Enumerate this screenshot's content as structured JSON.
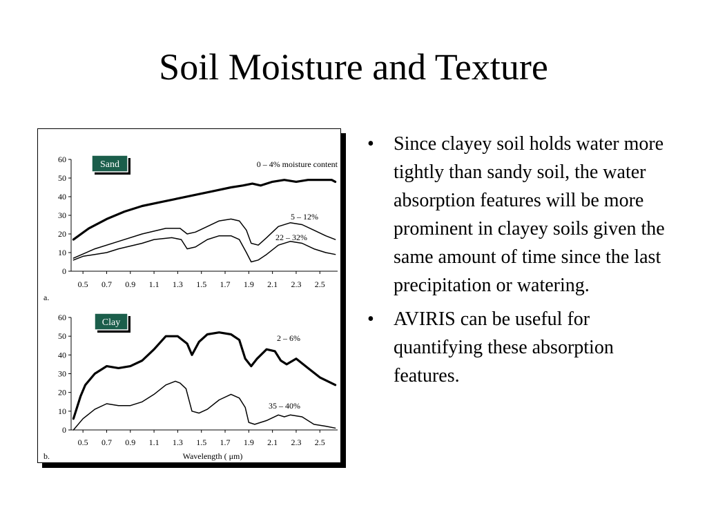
{
  "slide": {
    "title": "Soil Moisture and Texture"
  },
  "bullets": [
    {
      "marker": "•",
      "text": "Since clayey soil holds water more tightly than sandy soil, the water absorption features will be more prominent in clayey soils given the same amount of time since the last precipitation or watering."
    },
    {
      "marker": "•",
      "text": "AVIRIS can be useful for quantifying these absorption features."
    }
  ],
  "chart_data": [
    {
      "type": "line",
      "panel_label": "a.",
      "tag": "Sand",
      "tag_color": "#1b5e4b",
      "xlim": [
        0.4,
        2.65
      ],
      "ylim": [
        0,
        60
      ],
      "xticks": [
        "0.5",
        "0.7",
        "0.9",
        "1.1",
        "1.3",
        "1.5",
        "1.7",
        "1.9",
        "2.1",
        "2.3",
        "2.5"
      ],
      "yticks": [
        "0",
        "10",
        "20",
        "30",
        "40",
        "50",
        "60"
      ],
      "xlabel": "",
      "series": [
        {
          "name": "0 – 4% moisture content",
          "stroke": 3.2,
          "x": [
            0.42,
            0.55,
            0.7,
            0.85,
            1.0,
            1.15,
            1.3,
            1.45,
            1.6,
            1.75,
            1.85,
            1.93,
            2.0,
            2.1,
            2.2,
            2.3,
            2.4,
            2.5,
            2.6,
            2.63
          ],
          "y": [
            17,
            23,
            28,
            32,
            35,
            37,
            39,
            41,
            43,
            45,
            46,
            47,
            46,
            48,
            49,
            48,
            49,
            49,
            49,
            48
          ]
        },
        {
          "name": "5 – 12%",
          "stroke": 1.5,
          "x": [
            0.42,
            0.6,
            0.8,
            1.0,
            1.2,
            1.32,
            1.38,
            1.45,
            1.55,
            1.65,
            1.75,
            1.82,
            1.88,
            1.92,
            1.98,
            2.05,
            2.15,
            2.25,
            2.35,
            2.45,
            2.55,
            2.63
          ],
          "y": [
            7,
            12,
            16,
            20,
            23,
            23,
            20,
            21,
            24,
            27,
            28,
            27,
            22,
            15,
            14,
            18,
            24,
            26,
            25,
            22,
            19,
            17
          ]
        },
        {
          "name": "22 – 32%",
          "stroke": 1.5,
          "x": [
            0.42,
            0.5,
            0.6,
            0.7,
            0.8,
            1.0,
            1.1,
            1.25,
            1.33,
            1.38,
            1.45,
            1.55,
            1.65,
            1.75,
            1.82,
            1.88,
            1.92,
            1.98,
            2.05,
            2.15,
            2.25,
            2.35,
            2.45,
            2.55,
            2.63
          ],
          "y": [
            6,
            8,
            9,
            10,
            12,
            15,
            17,
            18,
            17,
            12,
            13,
            17,
            19,
            19,
            17,
            10,
            5,
            6,
            9,
            14,
            16,
            15,
            12,
            10,
            9
          ]
        }
      ]
    },
    {
      "type": "line",
      "panel_label": "b.",
      "tag": "Clay",
      "tag_color": "#1b5e4b",
      "xlim": [
        0.4,
        2.65
      ],
      "ylim": [
        0,
        60
      ],
      "xticks": [
        "0.5",
        "0.7",
        "0.9",
        "1.1",
        "1.3",
        "1.5",
        "1.7",
        "1.9",
        "2.1",
        "2.3",
        "2.5"
      ],
      "yticks": [
        "0",
        "10",
        "20",
        "30",
        "40",
        "50",
        "60"
      ],
      "xlabel": "Wavelength ( μm)",
      "series": [
        {
          "name": "2 – 6%",
          "stroke": 3.2,
          "x": [
            0.42,
            0.48,
            0.52,
            0.6,
            0.7,
            0.8,
            0.9,
            1.0,
            1.1,
            1.2,
            1.3,
            1.38,
            1.42,
            1.48,
            1.55,
            1.65,
            1.75,
            1.82,
            1.87,
            1.92,
            1.97,
            2.05,
            2.12,
            2.17,
            2.22,
            2.3,
            2.4,
            2.5,
            2.63
          ],
          "y": [
            6,
            18,
            24,
            30,
            34,
            33,
            34,
            37,
            43,
            50,
            50,
            46,
            40,
            47,
            51,
            52,
            51,
            48,
            38,
            34,
            38,
            43,
            42,
            37,
            35,
            38,
            33,
            28,
            24
          ]
        },
        {
          "name": "35 – 40%",
          "stroke": 1.5,
          "x": [
            0.42,
            0.5,
            0.6,
            0.7,
            0.8,
            0.9,
            1.0,
            1.1,
            1.2,
            1.28,
            1.32,
            1.37,
            1.42,
            1.48,
            1.55,
            1.65,
            1.75,
            1.82,
            1.87,
            1.9,
            1.95,
            2.05,
            2.15,
            2.2,
            2.25,
            2.35,
            2.45,
            2.55,
            2.63
          ],
          "y": [
            0,
            6,
            11,
            14,
            13,
            13,
            15,
            19,
            24,
            26,
            25,
            22,
            10,
            9,
            11,
            16,
            19,
            17,
            12,
            4,
            3,
            5,
            8,
            7,
            8,
            7,
            3,
            2,
            1
          ]
        }
      ]
    }
  ]
}
